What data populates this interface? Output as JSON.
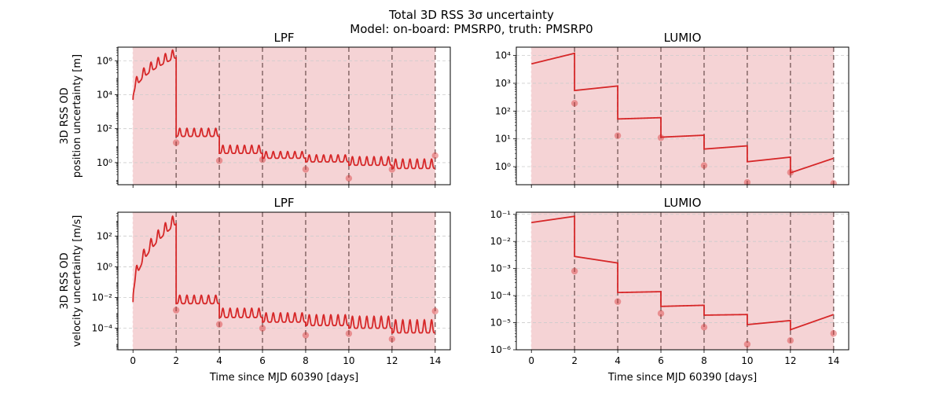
{
  "figure": {
    "title_line1": "Total 3D RSS 3σ uncertainty",
    "title_line2": "Model: on-board: PMSRP0, truth: PMSRP0"
  },
  "colors": {
    "line": "#d62728",
    "shade": "#f5d3d5",
    "dashed": "#8c6e6e",
    "grid": "#cccccc"
  },
  "chart_data": [
    {
      "id": "lpf-pos",
      "type": "line",
      "title": "LPF",
      "ylabel": [
        "3D RSS OD",
        "position uncertainty [m]"
      ],
      "xlabel": "",
      "xlim": [
        -0.7,
        14.7
      ],
      "ylim_log10": [
        -1.3,
        6.8
      ],
      "y_scale": "log",
      "xticks": [
        0,
        2,
        4,
        6,
        8,
        10,
        12,
        14
      ],
      "yticks": [
        {
          "exp": 6,
          "label": "10⁶"
        },
        {
          "exp": 4,
          "label": "10⁴"
        },
        {
          "exp": 2,
          "label": "10²"
        },
        {
          "exp": 0,
          "label": "10⁰"
        }
      ],
      "show_x_tick_labels": false,
      "shaded_x": [
        0,
        14
      ],
      "arc_boundaries": [
        2,
        4,
        6,
        8,
        10,
        12,
        14
      ],
      "arcs": [
        {
          "start": 0,
          "end": 2,
          "startVal": 5000,
          "endVal": 1500000,
          "peaks": 6,
          "peakGain": 2.5
        },
        {
          "start": 2,
          "end": 4,
          "startVal": 35,
          "endVal": 35,
          "peaks": 6,
          "peakGain": 2.0
        },
        {
          "start": 4,
          "end": 6,
          "startVal": 3.5,
          "endVal": 3.5,
          "peaks": 6,
          "peakGain": 2.0
        },
        {
          "start": 6,
          "end": 8,
          "startVal": 1.8,
          "endVal": 1.8,
          "peaks": 6,
          "peakGain": 1.5
        },
        {
          "start": 8,
          "end": 10,
          "startVal": 1.1,
          "endVal": 1.1,
          "peaks": 6,
          "peakGain": 1.6
        },
        {
          "start": 10,
          "end": 12,
          "startVal": 0.7,
          "endVal": 0.7,
          "peaks": 6,
          "peakGain": 2.2
        },
        {
          "start": 12,
          "end": 14,
          "startVal": 0.45,
          "endVal": 0.45,
          "peaks": 6,
          "peakGain": 2.6
        }
      ],
      "markers": [
        {
          "x": 2,
          "y": 15
        },
        {
          "x": 4,
          "y": 1.3
        },
        {
          "x": 6,
          "y": 1.5
        },
        {
          "x": 8,
          "y": 0.4
        },
        {
          "x": 10,
          "y": 0.12
        },
        {
          "x": 12,
          "y": 0.4
        },
        {
          "x": 14,
          "y": 2.6
        }
      ]
    },
    {
      "id": "lumio-pos",
      "type": "line",
      "title": "LUMIO",
      "ylabel": [],
      "xlabel": "",
      "xlim": [
        -0.7,
        14.7
      ],
      "ylim_log10": [
        -0.65,
        4.3
      ],
      "y_scale": "log",
      "xticks": [
        0,
        2,
        4,
        6,
        8,
        10,
        12,
        14
      ],
      "yticks": [
        {
          "exp": 4,
          "label": "10⁴"
        },
        {
          "exp": 3,
          "label": "10³"
        },
        {
          "exp": 2,
          "label": "10²"
        },
        {
          "exp": 1,
          "label": "10¹"
        },
        {
          "exp": 0,
          "label": "10⁰"
        }
      ],
      "show_x_tick_labels": false,
      "shaded_x": [
        0,
        14
      ],
      "arc_boundaries": [
        2,
        4,
        6,
        8,
        10,
        12,
        14
      ],
      "arcs": [
        {
          "start": 0,
          "end": 2,
          "startVal": 5000,
          "endVal": 12000,
          "peaks": 0,
          "peakGain": 0
        },
        {
          "start": 2,
          "end": 4,
          "startVal": 550,
          "endVal": 800,
          "peaks": 0,
          "peakGain": 0
        },
        {
          "start": 4,
          "end": 6,
          "startVal": 52,
          "endVal": 58,
          "peaks": 0,
          "peakGain": 0
        },
        {
          "start": 6,
          "end": 8,
          "startVal": 11.5,
          "endVal": 13.5,
          "peaks": 0,
          "peakGain": 0
        },
        {
          "start": 8,
          "end": 10,
          "startVal": 4.3,
          "endVal": 5.6,
          "peaks": 0,
          "peakGain": 0
        },
        {
          "start": 10,
          "end": 12,
          "startVal": 1.5,
          "endVal": 2.2,
          "peaks": 0,
          "peakGain": 0
        },
        {
          "start": 12,
          "end": 14,
          "startVal": 0.6,
          "endVal": 2.0,
          "peaks": 0,
          "peakGain": 0
        }
      ],
      "markers": [
        {
          "x": 2,
          "y": 190
        },
        {
          "x": 4,
          "y": 13
        },
        {
          "x": 6,
          "y": 11
        },
        {
          "x": 8,
          "y": 1.1
        },
        {
          "x": 10,
          "y": 0.27
        },
        {
          "x": 12,
          "y": 0.62
        },
        {
          "x": 14,
          "y": 0.25
        }
      ]
    },
    {
      "id": "lpf-vel",
      "type": "line",
      "title": "LPF",
      "ylabel": [
        "3D RSS OD",
        "velocity uncertainty [m/s]"
      ],
      "xlabel": "Time since MJD 60390 [days]",
      "xlim": [
        -0.7,
        14.7
      ],
      "ylim_log10": [
        -5.4,
        3.55
      ],
      "y_scale": "log",
      "xticks": [
        0,
        2,
        4,
        6,
        8,
        10,
        12,
        14
      ],
      "yticks": [
        {
          "exp": 2,
          "label": "10²"
        },
        {
          "exp": 0,
          "label": "10⁰"
        },
        {
          "exp": -2,
          "label": "10⁻²"
        },
        {
          "exp": -4,
          "label": "10⁻⁴"
        }
      ],
      "show_x_tick_labels": true,
      "shaded_x": [
        0,
        14
      ],
      "arc_boundaries": [
        2,
        4,
        6,
        8,
        10,
        12,
        14
      ],
      "arcs": [
        {
          "start": 0,
          "end": 2,
          "startVal": 0.005,
          "endVal": 600,
          "peaks": 6,
          "peakGain": 4.0
        },
        {
          "start": 2,
          "end": 4,
          "startVal": 0.004,
          "endVal": 0.004,
          "peaks": 6,
          "peakGain": 2.5
        },
        {
          "start": 4,
          "end": 6,
          "startVal": 0.0005,
          "endVal": 0.0005,
          "peaks": 6,
          "peakGain": 3.0
        },
        {
          "start": 6,
          "end": 8,
          "startVal": 0.00025,
          "endVal": 0.00025,
          "peaks": 6,
          "peakGain": 3.0
        },
        {
          "start": 8,
          "end": 10,
          "startVal": 0.00015,
          "endVal": 0.00015,
          "peaks": 6,
          "peakGain": 4.0
        },
        {
          "start": 10,
          "end": 12,
          "startVal": 0.0001,
          "endVal": 0.0001,
          "peaks": 6,
          "peakGain": 5.0
        },
        {
          "start": 12,
          "end": 14,
          "startVal": 5e-05,
          "endVal": 5e-05,
          "peaks": 6,
          "peakGain": 6.0
        }
      ],
      "markers": [
        {
          "x": 2,
          "y": 0.0015
        },
        {
          "x": 4,
          "y": 0.00018
        },
        {
          "x": 6,
          "y": 0.0001
        },
        {
          "x": 8,
          "y": 3.5e-05
        },
        {
          "x": 10,
          "y": 4.5e-05
        },
        {
          "x": 12,
          "y": 2e-05
        },
        {
          "x": 14,
          "y": 0.0013
        }
      ]
    },
    {
      "id": "lumio-vel",
      "type": "line",
      "title": "LUMIO",
      "ylabel": [],
      "xlabel": "Time since MJD 60390 [days]",
      "xlim": [
        -0.7,
        14.7
      ],
      "ylim_log10": [
        -6.0,
        -0.92
      ],
      "y_scale": "log",
      "xticks": [
        0,
        2,
        4,
        6,
        8,
        10,
        12,
        14
      ],
      "yticks": [
        {
          "exp": -1,
          "label": "10⁻¹"
        },
        {
          "exp": -2,
          "label": "10⁻²"
        },
        {
          "exp": -3,
          "label": "10⁻³"
        },
        {
          "exp": -4,
          "label": "10⁻⁴"
        },
        {
          "exp": -5,
          "label": "10⁻⁵"
        },
        {
          "exp": -6,
          "label": "10⁻⁶"
        }
      ],
      "show_x_tick_labels": true,
      "shaded_x": [
        0,
        14
      ],
      "arc_boundaries": [
        2,
        4,
        6,
        8,
        10,
        12,
        14
      ],
      "arcs": [
        {
          "start": 0,
          "end": 2,
          "startVal": 0.05,
          "endVal": 0.085,
          "peaks": 0,
          "peakGain": 0
        },
        {
          "start": 2,
          "end": 4,
          "startVal": 0.0028,
          "endVal": 0.0016,
          "peaks": 0,
          "peakGain": 0
        },
        {
          "start": 4,
          "end": 6,
          "startVal": 0.00013,
          "endVal": 0.00014,
          "peaks": 0,
          "peakGain": 0
        },
        {
          "start": 6,
          "end": 8,
          "startVal": 4e-05,
          "endVal": 4.4e-05,
          "peaks": 0,
          "peakGain": 0
        },
        {
          "start": 8,
          "end": 10,
          "startVal": 1.9e-05,
          "endVal": 2e-05,
          "peaks": 0,
          "peakGain": 0
        },
        {
          "start": 10,
          "end": 12,
          "startVal": 8.5e-06,
          "endVal": 1.2e-05,
          "peaks": 0,
          "peakGain": 0
        },
        {
          "start": 12,
          "end": 14,
          "startVal": 5.5e-06,
          "endVal": 2e-05,
          "peaks": 0,
          "peakGain": 0
        }
      ],
      "markers": [
        {
          "x": 2,
          "y": 0.0008
        },
        {
          "x": 4,
          "y": 6e-05
        },
        {
          "x": 6,
          "y": 2.2e-05
        },
        {
          "x": 8,
          "y": 6.8e-06
        },
        {
          "x": 10,
          "y": 1.6e-06
        },
        {
          "x": 12,
          "y": 2.2e-06
        },
        {
          "x": 14,
          "y": 4e-06
        }
      ]
    }
  ]
}
